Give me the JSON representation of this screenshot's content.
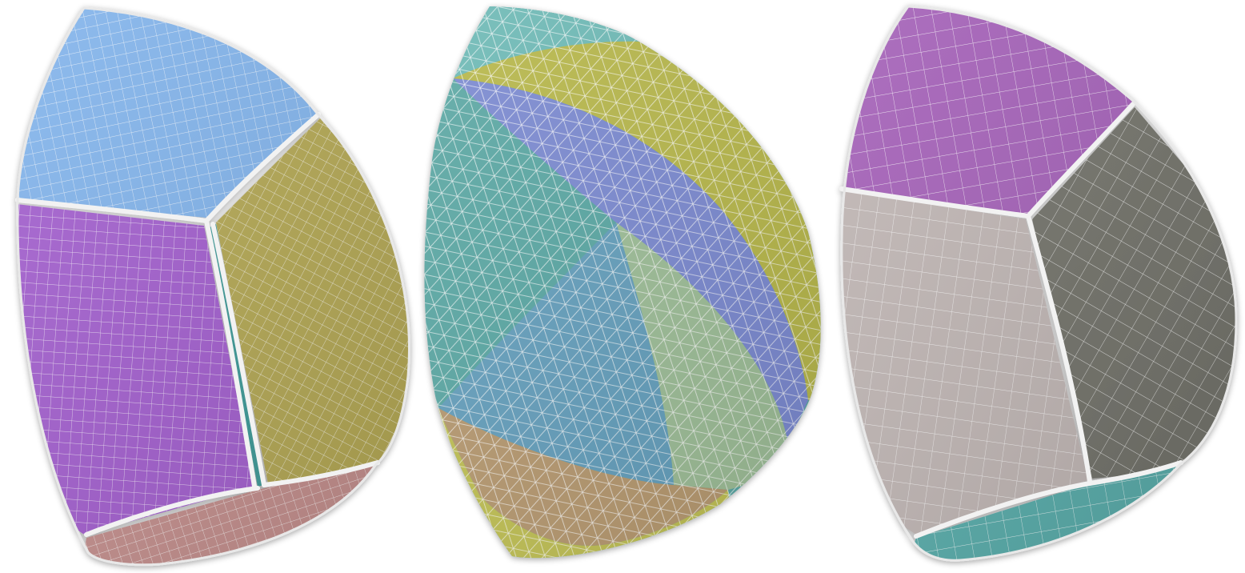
{
  "figure": {
    "panels": [
      {
        "id": "quad-mesh-left",
        "patches": [
          {
            "name": "top",
            "color": "#82b4ec"
          },
          {
            "name": "left",
            "color": "#a35fcf"
          },
          {
            "name": "right",
            "color": "#b4a854"
          },
          {
            "name": "sliver",
            "color": "#3e9a98"
          },
          {
            "name": "bottom",
            "color": "#c48f8d"
          }
        ]
      },
      {
        "id": "triangle-mesh-middle",
        "patches": [
          {
            "name": "teal-top",
            "color": "#6dbab6"
          },
          {
            "name": "yellow-band",
            "color": "#b8b84a"
          },
          {
            "name": "teal-left",
            "color": "#5aa8a4"
          },
          {
            "name": "blue-band",
            "color": "#7b8ad2"
          },
          {
            "name": "light-green",
            "color": "#9ebf98"
          },
          {
            "name": "steel-blue",
            "color": "#64a0be"
          },
          {
            "name": "tan",
            "color": "#b89a70"
          },
          {
            "name": "yellow-bottom",
            "color": "#c2c254"
          }
        ]
      },
      {
        "id": "quad-mesh-right",
        "patches": [
          {
            "name": "top",
            "color": "#a460b8"
          },
          {
            "name": "left",
            "color": "#c0b6b4"
          },
          {
            "name": "right",
            "color": "#72726a"
          },
          {
            "name": "bottom",
            "color": "#58acaa"
          }
        ]
      }
    ]
  }
}
